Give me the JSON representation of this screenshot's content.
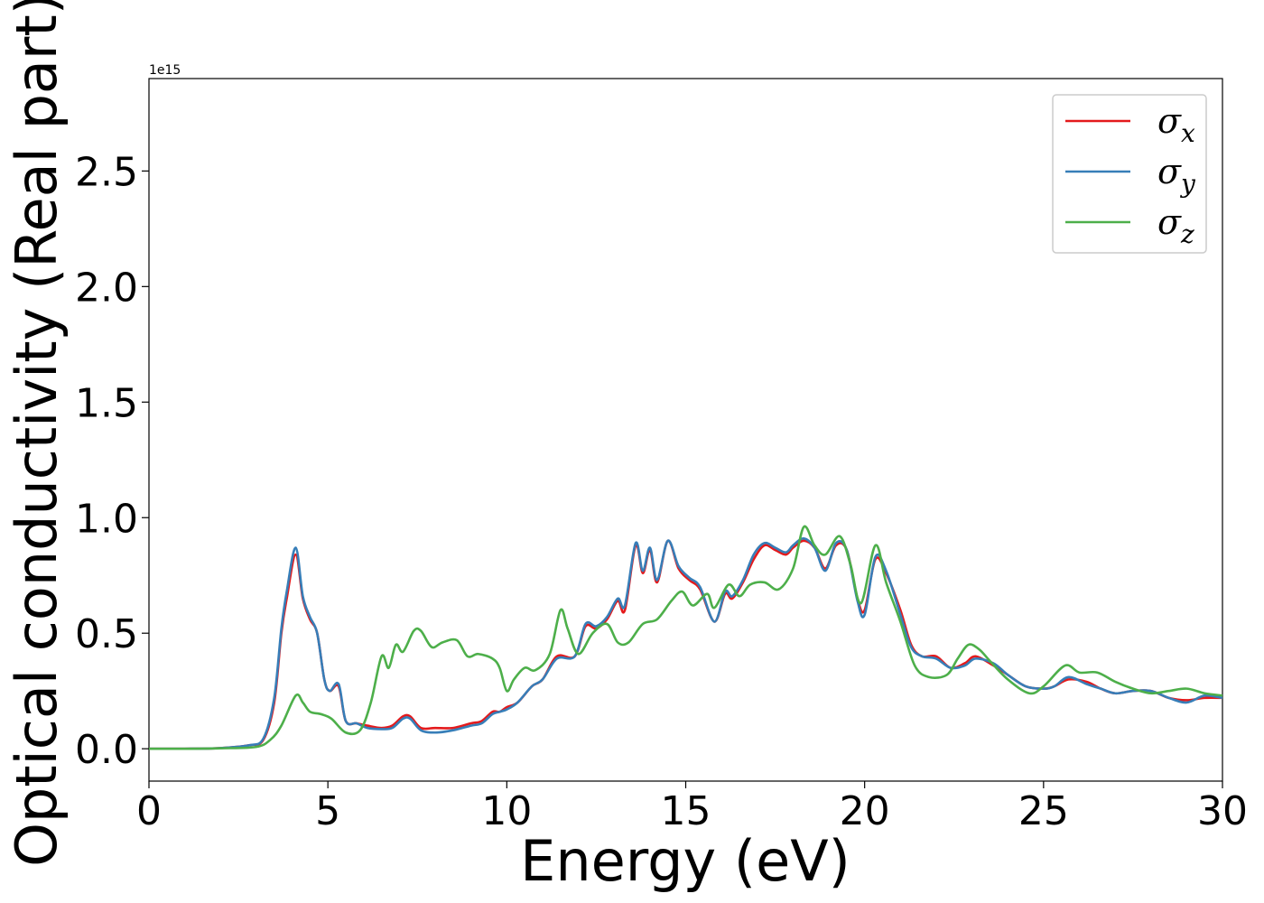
{
  "chart_data": {
    "type": "line",
    "xlabel": "Energy (eV)",
    "ylabel": "Optical conductivity (Real part)",
    "y_offset_label": "1e15",
    "xlim": [
      0,
      30
    ],
    "ylim": [
      -0.14,
      2.9
    ],
    "x_ticks": [
      0,
      5,
      10,
      15,
      20,
      25,
      30
    ],
    "x_tick_labels": [
      "0",
      "5",
      "10",
      "15",
      "20",
      "25",
      "30"
    ],
    "y_ticks": [
      0.0,
      0.5,
      1.0,
      1.5,
      2.0,
      2.5
    ],
    "y_tick_labels": [
      "0.0",
      "0.5",
      "1.0",
      "1.5",
      "2.0",
      "2.5"
    ],
    "grid": false,
    "legend_position": "top-right",
    "series": [
      {
        "name": "σx",
        "symbol": "σ",
        "subscript": "x",
        "color": "#e41a1c",
        "points": [
          [
            0,
            0
          ],
          [
            1,
            0
          ],
          [
            2,
            0.003
          ],
          [
            2.8,
            0.015
          ],
          [
            3.2,
            0.04
          ],
          [
            3.5,
            0.2
          ],
          [
            3.7,
            0.5
          ],
          [
            3.85,
            0.65
          ],
          [
            4.1,
            0.84
          ],
          [
            4.3,
            0.65
          ],
          [
            4.5,
            0.56
          ],
          [
            4.7,
            0.5
          ],
          [
            4.9,
            0.3
          ],
          [
            5.05,
            0.25
          ],
          [
            5.3,
            0.27
          ],
          [
            5.5,
            0.12
          ],
          [
            5.8,
            0.11
          ],
          [
            6.1,
            0.1
          ],
          [
            6.5,
            0.09
          ],
          [
            6.8,
            0.1
          ],
          [
            7.1,
            0.14
          ],
          [
            7.3,
            0.14
          ],
          [
            7.6,
            0.09
          ],
          [
            8,
            0.09
          ],
          [
            8.5,
            0.09
          ],
          [
            9,
            0.11
          ],
          [
            9.3,
            0.12
          ],
          [
            9.6,
            0.16
          ],
          [
            9.8,
            0.16
          ],
          [
            10,
            0.18
          ],
          [
            10.3,
            0.2
          ],
          [
            10.7,
            0.27
          ],
          [
            11,
            0.3
          ],
          [
            11.4,
            0.4
          ],
          [
            11.9,
            0.4
          ],
          [
            12.2,
            0.53
          ],
          [
            12.5,
            0.52
          ],
          [
            12.8,
            0.56
          ],
          [
            13.1,
            0.64
          ],
          [
            13.3,
            0.6
          ],
          [
            13.6,
            0.88
          ],
          [
            13.8,
            0.76
          ],
          [
            14,
            0.86
          ],
          [
            14.2,
            0.72
          ],
          [
            14.5,
            0.9
          ],
          [
            14.8,
            0.78
          ],
          [
            15.1,
            0.73
          ],
          [
            15.4,
            0.69
          ],
          [
            15.8,
            0.55
          ],
          [
            16.1,
            0.67
          ],
          [
            16.3,
            0.65
          ],
          [
            16.6,
            0.72
          ],
          [
            16.9,
            0.82
          ],
          [
            17.2,
            0.88
          ],
          [
            17.5,
            0.86
          ],
          [
            17.8,
            0.84
          ],
          [
            18,
            0.87
          ],
          [
            18.3,
            0.9
          ],
          [
            18.6,
            0.87
          ],
          [
            18.9,
            0.78
          ],
          [
            19.2,
            0.88
          ],
          [
            19.5,
            0.86
          ],
          [
            19.8,
            0.65
          ],
          [
            20,
            0.6
          ],
          [
            20.3,
            0.82
          ],
          [
            20.6,
            0.76
          ],
          [
            21,
            0.6
          ],
          [
            21.3,
            0.45
          ],
          [
            21.6,
            0.4
          ],
          [
            22,
            0.4
          ],
          [
            22.4,
            0.35
          ],
          [
            22.8,
            0.37
          ],
          [
            23.1,
            0.4
          ],
          [
            23.6,
            0.36
          ],
          [
            24,
            0.32
          ],
          [
            24.5,
            0.27
          ],
          [
            25,
            0.26
          ],
          [
            25.3,
            0.27
          ],
          [
            25.7,
            0.3
          ],
          [
            26.2,
            0.29
          ],
          [
            26.6,
            0.26
          ],
          [
            27,
            0.24
          ],
          [
            27.5,
            0.25
          ],
          [
            28,
            0.25
          ],
          [
            28.5,
            0.22
          ],
          [
            29,
            0.21
          ],
          [
            29.5,
            0.22
          ],
          [
            30,
            0.22
          ]
        ]
      },
      {
        "name": "σy",
        "symbol": "σ",
        "subscript": "y",
        "color": "#377eb8",
        "points": [
          [
            0,
            0
          ],
          [
            1,
            0
          ],
          [
            2,
            0.003
          ],
          [
            2.8,
            0.015
          ],
          [
            3.2,
            0.045
          ],
          [
            3.5,
            0.22
          ],
          [
            3.7,
            0.52
          ],
          [
            3.85,
            0.68
          ],
          [
            4.1,
            0.87
          ],
          [
            4.3,
            0.66
          ],
          [
            4.5,
            0.57
          ],
          [
            4.7,
            0.5
          ],
          [
            4.9,
            0.3
          ],
          [
            5.05,
            0.25
          ],
          [
            5.3,
            0.28
          ],
          [
            5.5,
            0.12
          ],
          [
            5.8,
            0.11
          ],
          [
            6.1,
            0.09
          ],
          [
            6.5,
            0.085
          ],
          [
            6.8,
            0.09
          ],
          [
            7.1,
            0.13
          ],
          [
            7.3,
            0.13
          ],
          [
            7.6,
            0.08
          ],
          [
            8,
            0.07
          ],
          [
            8.5,
            0.08
          ],
          [
            9,
            0.1
          ],
          [
            9.3,
            0.11
          ],
          [
            9.6,
            0.15
          ],
          [
            9.8,
            0.16
          ],
          [
            10,
            0.17
          ],
          [
            10.3,
            0.2
          ],
          [
            10.7,
            0.27
          ],
          [
            11,
            0.3
          ],
          [
            11.4,
            0.39
          ],
          [
            11.9,
            0.4
          ],
          [
            12.2,
            0.54
          ],
          [
            12.5,
            0.53
          ],
          [
            12.8,
            0.57
          ],
          [
            13.1,
            0.65
          ],
          [
            13.3,
            0.62
          ],
          [
            13.6,
            0.89
          ],
          [
            13.8,
            0.77
          ],
          [
            14,
            0.87
          ],
          [
            14.2,
            0.73
          ],
          [
            14.5,
            0.9
          ],
          [
            14.8,
            0.79
          ],
          [
            15.1,
            0.74
          ],
          [
            15.4,
            0.7
          ],
          [
            15.8,
            0.55
          ],
          [
            16.1,
            0.68
          ],
          [
            16.3,
            0.66
          ],
          [
            16.6,
            0.73
          ],
          [
            16.9,
            0.84
          ],
          [
            17.2,
            0.89
          ],
          [
            17.5,
            0.87
          ],
          [
            17.8,
            0.85
          ],
          [
            18,
            0.88
          ],
          [
            18.3,
            0.91
          ],
          [
            18.6,
            0.87
          ],
          [
            18.9,
            0.77
          ],
          [
            19.2,
            0.89
          ],
          [
            19.5,
            0.86
          ],
          [
            19.8,
            0.64
          ],
          [
            20,
            0.58
          ],
          [
            20.3,
            0.83
          ],
          [
            20.6,
            0.77
          ],
          [
            21,
            0.58
          ],
          [
            21.3,
            0.44
          ],
          [
            21.6,
            0.4
          ],
          [
            22,
            0.39
          ],
          [
            22.4,
            0.35
          ],
          [
            22.8,
            0.36
          ],
          [
            23.1,
            0.39
          ],
          [
            23.6,
            0.37
          ],
          [
            24,
            0.32
          ],
          [
            24.5,
            0.27
          ],
          [
            25,
            0.26
          ],
          [
            25.3,
            0.27
          ],
          [
            25.7,
            0.31
          ],
          [
            26.2,
            0.28
          ],
          [
            26.6,
            0.26
          ],
          [
            27,
            0.24
          ],
          [
            27.5,
            0.25
          ],
          [
            28,
            0.25
          ],
          [
            28.5,
            0.22
          ],
          [
            29,
            0.2
          ],
          [
            29.5,
            0.23
          ],
          [
            30,
            0.22
          ]
        ]
      },
      {
        "name": "σz",
        "symbol": "σ",
        "subscript": "z",
        "color": "#4daf4a",
        "points": [
          [
            0,
            0
          ],
          [
            1,
            0
          ],
          [
            2,
            0.002
          ],
          [
            3,
            0.008
          ],
          [
            3.4,
            0.04
          ],
          [
            3.7,
            0.1
          ],
          [
            4.1,
            0.23
          ],
          [
            4.3,
            0.2
          ],
          [
            4.5,
            0.16
          ],
          [
            4.8,
            0.15
          ],
          [
            5.1,
            0.13
          ],
          [
            5.5,
            0.07
          ],
          [
            5.9,
            0.08
          ],
          [
            6.2,
            0.2
          ],
          [
            6.5,
            0.4
          ],
          [
            6.7,
            0.35
          ],
          [
            6.9,
            0.45
          ],
          [
            7.1,
            0.42
          ],
          [
            7.4,
            0.51
          ],
          [
            7.6,
            0.51
          ],
          [
            7.9,
            0.44
          ],
          [
            8.2,
            0.46
          ],
          [
            8.6,
            0.47
          ],
          [
            8.9,
            0.4
          ],
          [
            9.2,
            0.41
          ],
          [
            9.6,
            0.39
          ],
          [
            9.8,
            0.35
          ],
          [
            10,
            0.25
          ],
          [
            10.2,
            0.3
          ],
          [
            10.5,
            0.35
          ],
          [
            10.8,
            0.34
          ],
          [
            11.2,
            0.41
          ],
          [
            11.5,
            0.6
          ],
          [
            11.7,
            0.52
          ],
          [
            12,
            0.41
          ],
          [
            12.4,
            0.5
          ],
          [
            12.8,
            0.54
          ],
          [
            13.1,
            0.46
          ],
          [
            13.4,
            0.46
          ],
          [
            13.8,
            0.54
          ],
          [
            14.2,
            0.56
          ],
          [
            14.6,
            0.64
          ],
          [
            14.9,
            0.68
          ],
          [
            15.2,
            0.62
          ],
          [
            15.6,
            0.67
          ],
          [
            15.8,
            0.61
          ],
          [
            16.2,
            0.71
          ],
          [
            16.5,
            0.66
          ],
          [
            16.8,
            0.71
          ],
          [
            17.2,
            0.72
          ],
          [
            17.6,
            0.69
          ],
          [
            18,
            0.78
          ],
          [
            18.3,
            0.96
          ],
          [
            18.6,
            0.88
          ],
          [
            18.9,
            0.84
          ],
          [
            19.3,
            0.92
          ],
          [
            19.6,
            0.8
          ],
          [
            19.9,
            0.63
          ],
          [
            20.3,
            0.88
          ],
          [
            20.6,
            0.72
          ],
          [
            21,
            0.55
          ],
          [
            21.4,
            0.36
          ],
          [
            21.8,
            0.31
          ],
          [
            22.3,
            0.32
          ],
          [
            22.6,
            0.39
          ],
          [
            22.9,
            0.45
          ],
          [
            23.2,
            0.43
          ],
          [
            23.5,
            0.38
          ],
          [
            24,
            0.3
          ],
          [
            24.6,
            0.24
          ],
          [
            25,
            0.27
          ],
          [
            25.6,
            0.36
          ],
          [
            26,
            0.33
          ],
          [
            26.5,
            0.33
          ],
          [
            27,
            0.29
          ],
          [
            27.5,
            0.26
          ],
          [
            28,
            0.24
          ],
          [
            28.5,
            0.25
          ],
          [
            29,
            0.26
          ],
          [
            29.5,
            0.24
          ],
          [
            30,
            0.23
          ]
        ]
      }
    ]
  }
}
